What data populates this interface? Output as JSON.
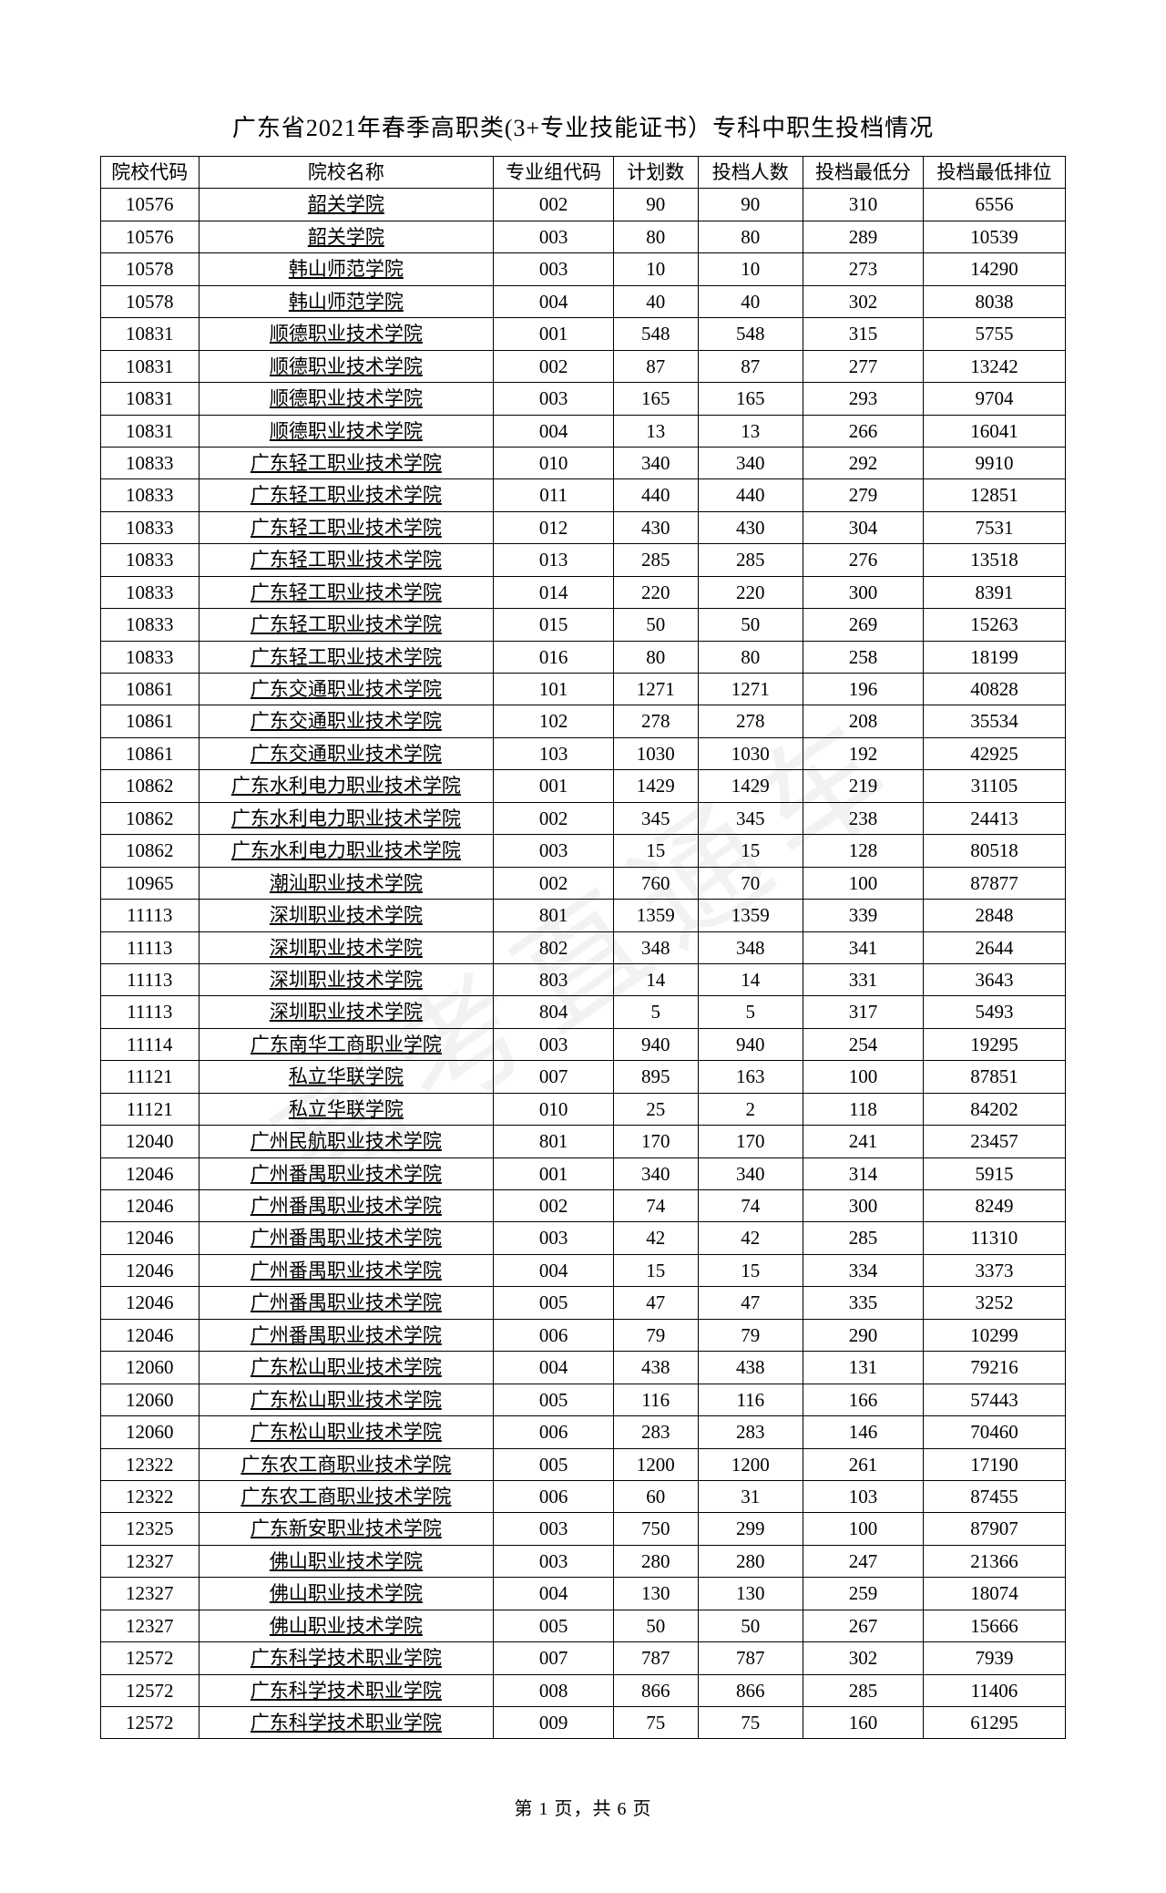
{
  "title": "广东省2021年春季高职类(3+专业技能证书）专科中职生投档情况",
  "footer": "第 1 页，共 6 页",
  "columns": [
    "院校代码",
    "院校名称",
    "专业组代码",
    "计划数",
    "投档人数",
    "投档最低分",
    "投档最低排位"
  ],
  "rows": [
    [
      "10576",
      "韶关学院",
      "002",
      "90",
      "90",
      "310",
      "6556"
    ],
    [
      "10576",
      "韶关学院",
      "003",
      "80",
      "80",
      "289",
      "10539"
    ],
    [
      "10578",
      "韩山师范学院",
      "003",
      "10",
      "10",
      "273",
      "14290"
    ],
    [
      "10578",
      "韩山师范学院",
      "004",
      "40",
      "40",
      "302",
      "8038"
    ],
    [
      "10831",
      "顺德职业技术学院",
      "001",
      "548",
      "548",
      "315",
      "5755"
    ],
    [
      "10831",
      "顺德职业技术学院",
      "002",
      "87",
      "87",
      "277",
      "13242"
    ],
    [
      "10831",
      "顺德职业技术学院",
      "003",
      "165",
      "165",
      "293",
      "9704"
    ],
    [
      "10831",
      "顺德职业技术学院",
      "004",
      "13",
      "13",
      "266",
      "16041"
    ],
    [
      "10833",
      "广东轻工职业技术学院",
      "010",
      "340",
      "340",
      "292",
      "9910"
    ],
    [
      "10833",
      "广东轻工职业技术学院",
      "011",
      "440",
      "440",
      "279",
      "12851"
    ],
    [
      "10833",
      "广东轻工职业技术学院",
      "012",
      "430",
      "430",
      "304",
      "7531"
    ],
    [
      "10833",
      "广东轻工职业技术学院",
      "013",
      "285",
      "285",
      "276",
      "13518"
    ],
    [
      "10833",
      "广东轻工职业技术学院",
      "014",
      "220",
      "220",
      "300",
      "8391"
    ],
    [
      "10833",
      "广东轻工职业技术学院",
      "015",
      "50",
      "50",
      "269",
      "15263"
    ],
    [
      "10833",
      "广东轻工职业技术学院",
      "016",
      "80",
      "80",
      "258",
      "18199"
    ],
    [
      "10861",
      "广东交通职业技术学院",
      "101",
      "1271",
      "1271",
      "196",
      "40828"
    ],
    [
      "10861",
      "广东交通职业技术学院",
      "102",
      "278",
      "278",
      "208",
      "35534"
    ],
    [
      "10861",
      "广东交通职业技术学院",
      "103",
      "1030",
      "1030",
      "192",
      "42925"
    ],
    [
      "10862",
      "广东水利电力职业技术学院",
      "001",
      "1429",
      "1429",
      "219",
      "31105"
    ],
    [
      "10862",
      "广东水利电力职业技术学院",
      "002",
      "345",
      "345",
      "238",
      "24413"
    ],
    [
      "10862",
      "广东水利电力职业技术学院",
      "003",
      "15",
      "15",
      "128",
      "80518"
    ],
    [
      "10965",
      "潮汕职业技术学院",
      "002",
      "760",
      "70",
      "100",
      "87877"
    ],
    [
      "11113",
      "深圳职业技术学院",
      "801",
      "1359",
      "1359",
      "339",
      "2848"
    ],
    [
      "11113",
      "深圳职业技术学院",
      "802",
      "348",
      "348",
      "341",
      "2644"
    ],
    [
      "11113",
      "深圳职业技术学院",
      "803",
      "14",
      "14",
      "331",
      "3643"
    ],
    [
      "11113",
      "深圳职业技术学院",
      "804",
      "5",
      "5",
      "317",
      "5493"
    ],
    [
      "11114",
      "广东南华工商职业学院",
      "003",
      "940",
      "940",
      "254",
      "19295"
    ],
    [
      "11121",
      "私立华联学院",
      "007",
      "895",
      "163",
      "100",
      "87851"
    ],
    [
      "11121",
      "私立华联学院",
      "010",
      "25",
      "2",
      "118",
      "84202"
    ],
    [
      "12040",
      "广州民航职业技术学院",
      "801",
      "170",
      "170",
      "241",
      "23457"
    ],
    [
      "12046",
      "广州番禺职业技术学院",
      "001",
      "340",
      "340",
      "314",
      "5915"
    ],
    [
      "12046",
      "广州番禺职业技术学院",
      "002",
      "74",
      "74",
      "300",
      "8249"
    ],
    [
      "12046",
      "广州番禺职业技术学院",
      "003",
      "42",
      "42",
      "285",
      "11310"
    ],
    [
      "12046",
      "广州番禺职业技术学院",
      "004",
      "15",
      "15",
      "334",
      "3373"
    ],
    [
      "12046",
      "广州番禺职业技术学院",
      "005",
      "47",
      "47",
      "335",
      "3252"
    ],
    [
      "12046",
      "广州番禺职业技术学院",
      "006",
      "79",
      "79",
      "290",
      "10299"
    ],
    [
      "12060",
      "广东松山职业技术学院",
      "004",
      "438",
      "438",
      "131",
      "79216"
    ],
    [
      "12060",
      "广东松山职业技术学院",
      "005",
      "116",
      "116",
      "166",
      "57443"
    ],
    [
      "12060",
      "广东松山职业技术学院",
      "006",
      "283",
      "283",
      "146",
      "70460"
    ],
    [
      "12322",
      "广东农工商职业技术学院",
      "005",
      "1200",
      "1200",
      "261",
      "17190"
    ],
    [
      "12322",
      "广东农工商职业技术学院",
      "006",
      "60",
      "31",
      "103",
      "87455"
    ],
    [
      "12325",
      "广东新安职业技术学院",
      "003",
      "750",
      "299",
      "100",
      "87907"
    ],
    [
      "12327",
      "佛山职业技术学院",
      "003",
      "280",
      "280",
      "247",
      "21366"
    ],
    [
      "12327",
      "佛山职业技术学院",
      "004",
      "130",
      "130",
      "259",
      "18074"
    ],
    [
      "12327",
      "佛山职业技术学院",
      "005",
      "50",
      "50",
      "267",
      "15666"
    ],
    [
      "12572",
      "广东科学技术职业学院",
      "007",
      "787",
      "787",
      "302",
      "7939"
    ],
    [
      "12572",
      "广东科学技术职业学院",
      "008",
      "866",
      "866",
      "285",
      "11406"
    ],
    [
      "12572",
      "广东科学技术职业学院",
      "009",
      "75",
      "75",
      "160",
      "61295"
    ]
  ]
}
